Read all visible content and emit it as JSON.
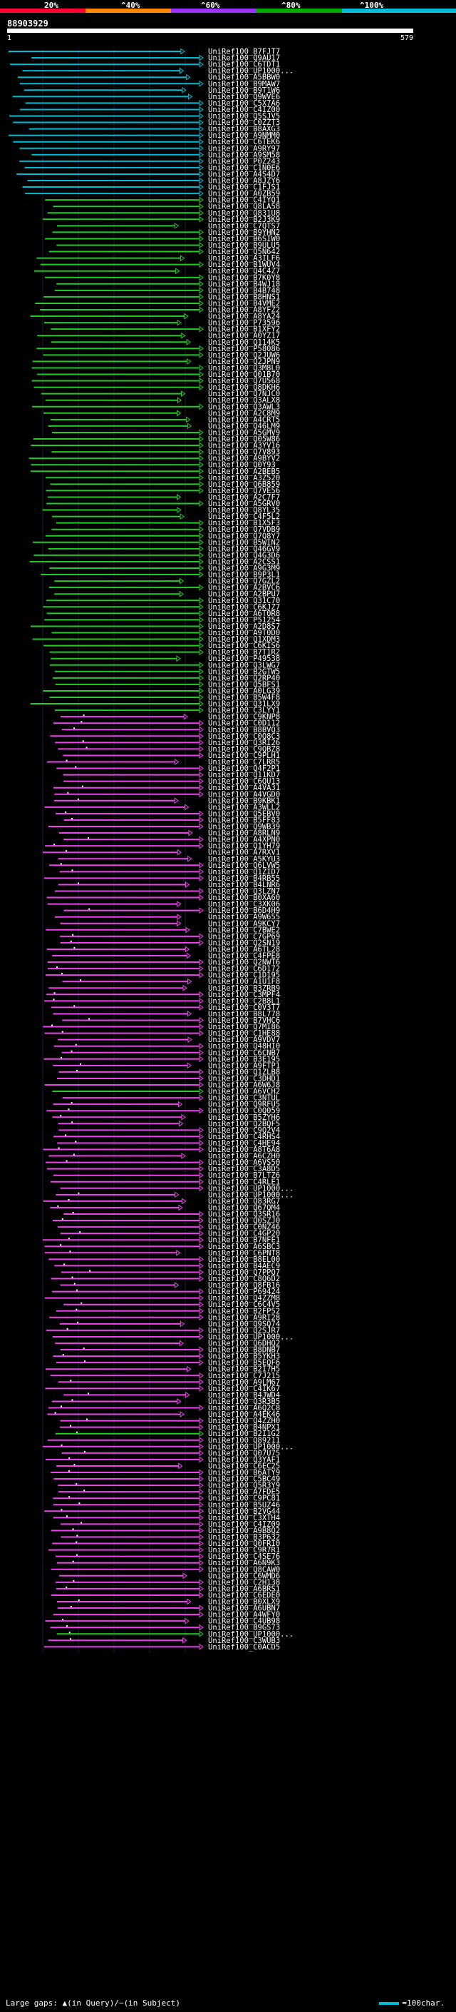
{
  "legend": {
    "labels": [
      "20%",
      "^40%",
      "^60%",
      "^80%",
      "^100%"
    ],
    "colors": [
      "#ff0033",
      "#ff8800",
      "#9933ff",
      "#00aa00",
      "#00bcd4"
    ]
  },
  "query": {
    "id": "88903929",
    "start": "1",
    "end": "579"
  },
  "hit_colors": {
    "cyan": "#00bcd4",
    "green": "#22cc22",
    "magenta": "#ee44ee"
  },
  "hits": [
    "UniRef100_B7FJT7",
    "UniRef100_Q9AU17",
    "UniRef100_C6TDT1",
    "UniRef100_UP1000...",
    "UniRef100_A5BBW0",
    "UniRef100_B9MAW7",
    "UniRef100_B9T1W6",
    "UniRef100_Q9WVE6",
    "UniRef100_C5X7A6",
    "UniRef100_C4IZ00",
    "UniRef100_Q5SJV5",
    "UniRef100_C0ZZT3",
    "UniRef100_B8AXG3",
    "UniRef100_A9NMM0",
    "UniRef100_C6TEK6",
    "UniRef100_A9RY97",
    "UniRef100_A9SM58",
    "UniRef100_P0Z243",
    "UniRef100_C1N0E6",
    "UniRef100_A4S4D7",
    "UniRef100_A8JZY6",
    "UniRef100_C1FJS1",
    "UniRef100_A0ZB59",
    "UniRef100_C4IYQ1",
    "UniRef100_Q8LA58",
    "UniRef100_Q831U8",
    "UniRef100_B2J3K9",
    "UniRef100_C7QTS7",
    "UniRef100_B9YHN2",
    "UniRef100_B6SIW0",
    "UniRef100_B9ULU5",
    "UniRef100_Q5N642",
    "UniRef100_A3ILF6",
    "UniRef100_B1WUV4",
    "UniRef100_Q4C4Z7",
    "UniRef100_B7K0Y8",
    "UniRef100_B4WJ18",
    "UniRef100_B4B748",
    "UniRef100_B8HNS1",
    "UniRef100_B4VME2",
    "UniRef100_A8YFZ2",
    "UniRef100_A8YA24",
    "UniRef100_P73596",
    "UniRef100_B1XFY2",
    "UniRef100_A0YZ17",
    "UniRef100_Q114K5",
    "UniRef100_P58086",
    "UniRef100_Q2JUW6",
    "UniRef100_Q2JPN9",
    "UniRef100_Q3M8L0",
    "UniRef100_Q01B70",
    "UniRef100_Q7U568",
    "UniRef100_Q8DKH6",
    "UniRef100_Q7NJC0",
    "UniRef100_Q3ALX8",
    "UniRef100_Q3AWL3",
    "UniRef100_A2C8M9",
    "UniRef100_A4CRT5",
    "UniRef100_Q46LM9",
    "UniRef100_A5GMV9",
    "UniRef100_Q05W86",
    "UniRef100_A3YV16",
    "UniRef100_Q7V893",
    "UniRef100_A9BYV2",
    "UniRef100_Q0Y93",
    "UniRef100_A2BEB5",
    "UniRef100_A3Z520",
    "UniRef100_Q6B859",
    "UniRef100_Q7VE56",
    "UniRef100_A2C7F7",
    "UniRef100_A5GRV0",
    "UniRef100_Q8YL35",
    "UniRef100_C4F5L2",
    "UniRef100_B1X5F3",
    "UniRef100_Q7VDB9",
    "UniRef100_Q7Q8Y7",
    "UniRef100_B5WIN2",
    "UniRef100_Q46GV9",
    "UniRef100_Q4G3D6",
    "UniRef100_A2CSS1",
    "UniRef100_A9G3M9",
    "UniRef100_B9P3L1",
    "UniRef100_Q7GZL2",
    "UniRef100_A2BVC6",
    "UniRef100_A2BPU7",
    "UniRef100_Q31C70",
    "UniRef100_C6KJZ7",
    "UniRef100_A6T0R8",
    "UniRef100_P51254",
    "UniRef100_A2D8S7",
    "UniRef100_A9T0D0",
    "UniRef100_Q1XDM3",
    "UniRef100_C6KIS6",
    "UniRef100_B7T1R2",
    "UniRef100_P49538",
    "UniRef100_Q3LWG7",
    "UniRef100_B2GTW5",
    "UniRef100_Q2RP40",
    "UniRef100_Q5BFS1",
    "UniRef100_A0LG39",
    "UniRef100_B5W4F8",
    "UniRef100_Q31LX9",
    "UniRef100_C3LYY1",
    "UniRef100_C9KNP8",
    "UniRef100_C0D112",
    "UniRef100_B8BVQ3",
    "UniRef100_C0Q8C3",
    "UniRef100_Q3RI26",
    "UniRef100_C9QBZ8",
    "UniRef100_C9PLH1",
    "UniRef100_C7LRR5",
    "UniRef100_Q4F2P1",
    "UniRef100_Q11KD7",
    "UniRef100_C6QU13",
    "UniRef100_A4VA31",
    "UniRef100_A4VGD0",
    "UniRef100_B9KBK1",
    "UniRef100_A3WLL2",
    "UniRef100_Q5EBV0",
    "UniRef100_B5FF83",
    "UniRef100_Q9WB39",
    "UniRef100_A8RLN9",
    "UniRef100_A4XPN0",
    "UniRef100_Q1YH79",
    "UniRef100_A7RXV1",
    "UniRef100_A5KYU3",
    "UniRef100_Q6LVW5",
    "UniRef100_Q1ZID7",
    "UniRef100_B4RB55",
    "UniRef100_B4LNR6",
    "UniRef100_Q3LZN7",
    "UniRef100_B0XA60",
    "UniRef100_C3XK06",
    "UniRef100_B6D4H9",
    "UniRef100_A9W655",
    "UniRef100_A9KCY7",
    "UniRef100_C7BWE2",
    "UniRef100_C7GP69",
    "UniRef100_Q2SN19",
    "UniRef100_A6TL28",
    "UniRef100_C4FPE8",
    "UniRef100_Q2NWT6",
    "UniRef100_C6D172",
    "UniRef100_C1D195",
    "UniRef100_A1U1F8",
    "UniRef100_B3ZRB9",
    "UniRef100_C3MPF4",
    "UniRef100_C2B8L1",
    "UniRef100_C0V3T7",
    "UniRef100_B8L778",
    "UniRef100_B7VHC6",
    "UniRef100_Q7MI86",
    "UniRef100_C1HE88",
    "UniRef100_A9VDV7",
    "UniRef100_Q48HI0",
    "UniRef100_C6CNB7",
    "UniRef100_B3E195",
    "UniRef100_A9FTP1",
    "UniRef100_Q1ZLB8",
    "UniRef100_C3DHD1",
    "UniRef100_A6W6J8",
    "UniRef100_A6VCH2",
    "UniRef100_C3NTUL",
    "UniRef100_Q9RFU5",
    "UniRef100_C0Q059",
    "UniRef100_B5ZYH6",
    "UniRef100_Q2BQF5",
    "UniRef100_C9Q2V4",
    "UniRef100_C4RHS4",
    "UniRef100_C4HE94",
    "UniRef100_A8T6A8",
    "UniRef100_A6CZH0",
    "UniRef100_A6VS50",
    "UniRef100_C3A8D5",
    "UniRef100_B7LTZ6",
    "UniRef100_C4RLE1",
    "UniRef100_UP1000...",
    "UniRef100_UP1000...",
    "UniRef100_Q83RG7",
    "UniRef100_Q67QM4",
    "UniRef100_Q3SR16",
    "UniRef100_Q0SZJ0",
    "UniRef100_C0NZ46",
    "UniRef100_C4GP20",
    "UniRef100_B7NFE1",
    "UniRef100_A6SBC3",
    "UniRef100_C6PNT8",
    "UniRef100_B8EL00",
    "UniRef100_B4AEC9",
    "UniRef100_Q7PPQ7",
    "UniRef100_C8Q6D2",
    "UniRef100_Q8FB16",
    "UniRef100_P69424",
    "UniRef100_Q4ZZM8",
    "UniRef100_C6C4V5",
    "UniRef100_B2FP52",
    "UniRef100_A9RI28",
    "UniRef100_Q9SQ74",
    "UniRef100_Q2SJR7",
    "UniRef100_UP1000...",
    "UniRef100_Q6DHQ2",
    "UniRef100_B8DNB7",
    "UniRef100_B5YKH3",
    "UniRef100_B5EQF6",
    "UniRef100_B2I7H5",
    "UniRef100_C7J215",
    "UniRef100_A9LM67",
    "UniRef100_C4IK67",
    "UniRef100_B4JWD4",
    "UniRef100_Q3R3B5",
    "UniRef100_A6Q2C8",
    "UniRef100_A4EK46",
    "UniRef100_Q4ZZH0",
    "UniRef100_B4NPX1",
    "UniRef100_B2I1G2",
    "UniRef100_Q89211",
    "UniRef100_UP1000...",
    "UniRef100_Q07U75",
    "UniRef100_Q3YAF1",
    "UniRef100_C6EC25",
    "UniRef100_B6ATY9",
    "UniRef100_C5BC49",
    "UniRef100_Q5R3Y9",
    "UniRef100_A7FDE5",
    "UniRef100_C9PC81",
    "UniRef100_B5UZ46",
    "UniRef100_B2VG44",
    "UniRef100_C3XTH4",
    "UniRef100_C4IZ09",
    "UniRef100_A9B8Q2",
    "UniRef100_B3P632",
    "UniRef100_Q0FRI0",
    "UniRef100_C9R7R1",
    "UniRef100_C4SE76",
    "UniRef100_A6N9K3",
    "UniRef100_Q8CAW0",
    "UniRef100_C6WMD6",
    "UniRef100_C2H138",
    "UniRef100_A6BRS1",
    "UniRef100_C6EDE0",
    "UniRef100_B0XLX9",
    "UniRef100_A6UBN7",
    "UniRef100_A4WFY0",
    "UniRef100_C4UB98",
    "UniRef100_B9GS73",
    "UniRef100_UP1000...",
    "UniRef100_C3WUB3",
    "UniRef100_C0ACD5"
  ],
  "footer": {
    "gaps": "Large gaps: ▲(in Query)/−(in Subject)",
    "scale": "=100char."
  }
}
